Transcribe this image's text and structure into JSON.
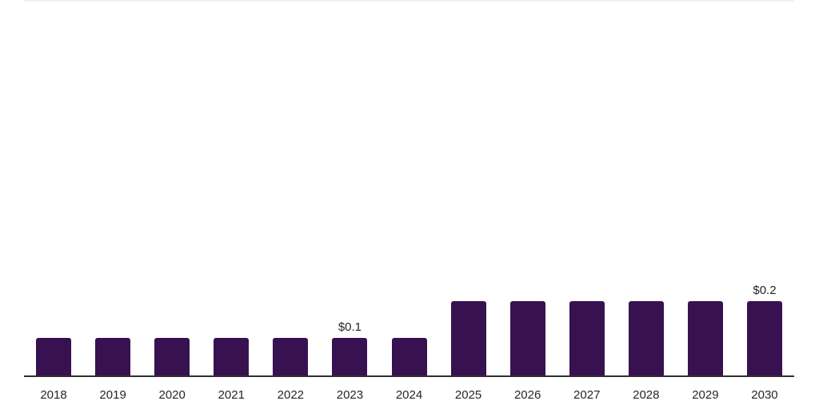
{
  "chart_data": {
    "type": "bar",
    "title": "",
    "xlabel": "",
    "ylabel": "",
    "categories": [
      "2018",
      "2019",
      "2020",
      "2021",
      "2022",
      "2023",
      "2024",
      "2025",
      "2026",
      "2027",
      "2028",
      "2029",
      "2030"
    ],
    "values": [
      0.1,
      0.1,
      0.1,
      0.1,
      0.1,
      0.1,
      0.1,
      0.2,
      0.2,
      0.2,
      0.2,
      0.2,
      0.2
    ],
    "point_labels": [
      "",
      "",
      "",
      "",
      "",
      "$0.1",
      "",
      "",
      "",
      "",
      "",
      "",
      "$0.2"
    ],
    "grid": "off",
    "legend": "none",
    "colors": {
      "bar": "#381150",
      "axis": "#2f2f2f",
      "tick_label": "#262626",
      "value_label": "#262626",
      "top_border": "#f0f0f1"
    }
  }
}
